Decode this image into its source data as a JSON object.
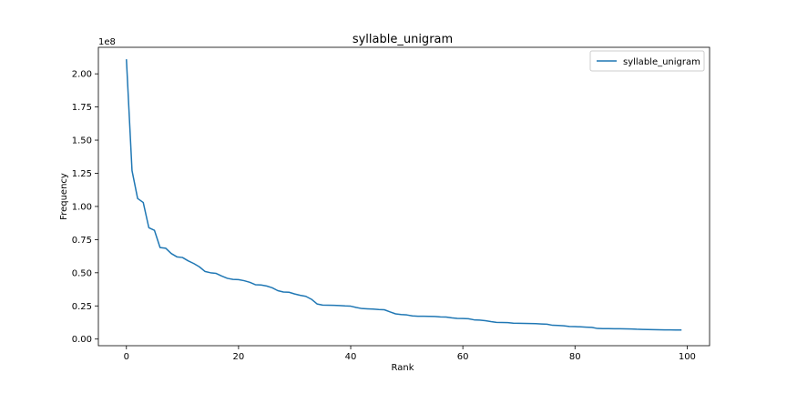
{
  "chart_data": {
    "type": "line",
    "title": "syllable_unigram",
    "xlabel": "Rank",
    "ylabel": "Frequency",
    "y_offset_label": "1e8",
    "xlim": [
      -5,
      104
    ],
    "ylim": [
      -5000000.0,
      220000000.0
    ],
    "x_ticks": [
      0,
      20,
      40,
      60,
      80,
      100
    ],
    "x_tick_labels": [
      "0",
      "20",
      "40",
      "60",
      "80",
      "100"
    ],
    "y_ticks": [
      0,
      25000000,
      50000000,
      75000000,
      100000000,
      125000000,
      150000000,
      175000000,
      200000000
    ],
    "y_tick_labels": [
      "0.00",
      "0.25",
      "0.50",
      "0.75",
      "1.00",
      "1.25",
      "1.50",
      "1.75",
      "2.00"
    ],
    "grid": false,
    "legend_position": "top-right",
    "series": [
      {
        "name": "syllable_unigram",
        "color": "#1f77b4",
        "x": [
          0,
          1,
          2,
          3,
          4,
          5,
          6,
          7,
          8,
          9,
          10,
          11,
          12,
          13,
          14,
          15,
          16,
          17,
          18,
          19,
          20,
          21,
          22,
          23,
          24,
          25,
          26,
          27,
          28,
          29,
          30,
          31,
          32,
          33,
          34,
          35,
          36,
          37,
          38,
          39,
          40,
          41,
          42,
          43,
          44,
          45,
          46,
          47,
          48,
          49,
          50,
          51,
          52,
          53,
          54,
          55,
          56,
          57,
          58,
          59,
          60,
          61,
          62,
          63,
          64,
          65,
          66,
          67,
          68,
          69,
          70,
          71,
          72,
          73,
          74,
          75,
          76,
          77,
          78,
          79,
          80,
          81,
          82,
          83,
          84,
          85,
          86,
          87,
          88,
          89,
          90,
          91,
          92,
          93,
          94,
          95,
          96,
          97,
          98,
          99
        ],
        "y": [
          211000000,
          127000000,
          106000000,
          103000000,
          84000000,
          82000000,
          69000000,
          68500000,
          64500000,
          62000000,
          61500000,
          59000000,
          57000000,
          54500000,
          51000000,
          50000000,
          49500000,
          47500000,
          45800000,
          45000000,
          44800000,
          44000000,
          42800000,
          41000000,
          40800000,
          40000000,
          38700000,
          36500000,
          35500000,
          35300000,
          34000000,
          33000000,
          32200000,
          30000000,
          26500000,
          25600000,
          25500000,
          25400000,
          25300000,
          25000000,
          24800000,
          23800000,
          23000000,
          22800000,
          22600000,
          22300000,
          22100000,
          20500000,
          19000000,
          18500000,
          18200000,
          17500000,
          17200000,
          17200000,
          17100000,
          17000000,
          16700000,
          16600000,
          16000000,
          15600000,
          15500000,
          15300000,
          14500000,
          14300000,
          13900000,
          13200000,
          12600000,
          12500000,
          12400000,
          12000000,
          11900000,
          11800000,
          11700000,
          11600000,
          11400000,
          11200000,
          10400000,
          10300000,
          10000000,
          9500000,
          9400000,
          9200000,
          9000000,
          8800000,
          8000000,
          7900000,
          7900000,
          7800000,
          7800000,
          7700000,
          7600000,
          7400000,
          7300000,
          7200000,
          7100000,
          7000000,
          6900000,
          6900000,
          6800000,
          6800000
        ]
      }
    ]
  }
}
